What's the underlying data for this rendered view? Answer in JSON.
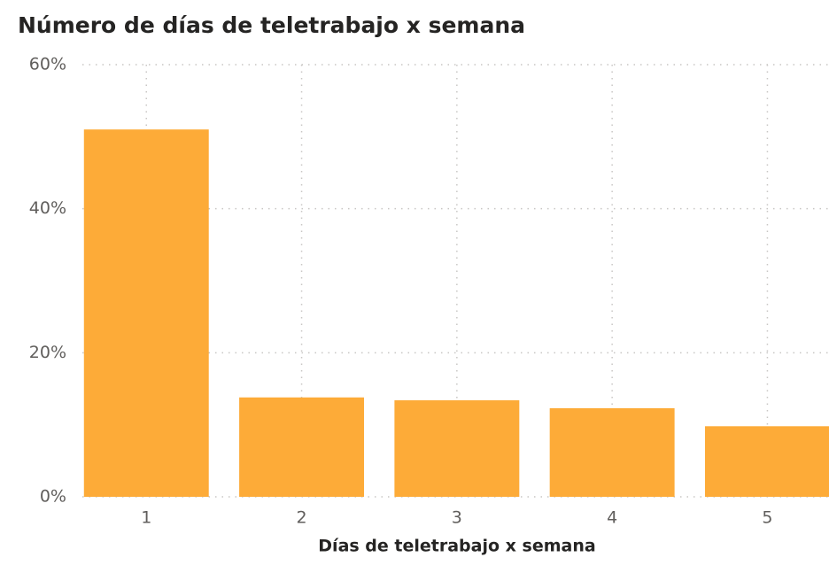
{
  "chart_data": {
    "type": "bar",
    "title": "Número de días de teletrabajo x semana",
    "x_label": "Días de teletrabajo x semana",
    "categories": [
      "1",
      "2",
      "3",
      "4",
      "5"
    ],
    "values": [
      51.0,
      13.8,
      13.4,
      12.3,
      9.8
    ],
    "color": "#fdab38",
    "ylim": [
      0,
      60
    ],
    "yticks": [
      {
        "value": 0,
        "label": "0%"
      },
      {
        "value": 20,
        "label": "20%"
      },
      {
        "value": 40,
        "label": "40%"
      },
      {
        "value": 60,
        "label": "60%"
      }
    ],
    "grid": true
  }
}
